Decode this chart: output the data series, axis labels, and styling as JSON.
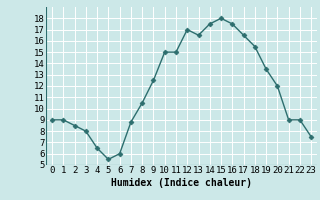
{
  "x": [
    0,
    1,
    2,
    3,
    4,
    5,
    6,
    7,
    8,
    9,
    10,
    11,
    12,
    13,
    14,
    15,
    16,
    17,
    18,
    19,
    20,
    21,
    22,
    23
  ],
  "y": [
    9.0,
    9.0,
    8.5,
    8.0,
    6.5,
    5.5,
    6.0,
    8.8,
    10.5,
    12.5,
    15.0,
    15.0,
    17.0,
    16.5,
    17.5,
    18.0,
    17.5,
    16.5,
    15.5,
    13.5,
    12.0,
    9.0,
    9.0,
    7.5
  ],
  "xlabel": "Humidex (Indice chaleur)",
  "xlim": [
    -0.5,
    23.5
  ],
  "ylim": [
    5,
    19
  ],
  "yticks": [
    5,
    6,
    7,
    8,
    9,
    10,
    11,
    12,
    13,
    14,
    15,
    16,
    17,
    18
  ],
  "xticks": [
    0,
    1,
    2,
    3,
    4,
    5,
    6,
    7,
    8,
    9,
    10,
    11,
    12,
    13,
    14,
    15,
    16,
    17,
    18,
    19,
    20,
    21,
    22,
    23
  ],
  "line_color": "#2d6e6e",
  "marker": "D",
  "marker_size": 2.5,
  "bg_color": "#cce8e8",
  "grid_color": "#ffffff",
  "xlabel_fontsize": 7,
  "tick_fontsize": 6.5
}
